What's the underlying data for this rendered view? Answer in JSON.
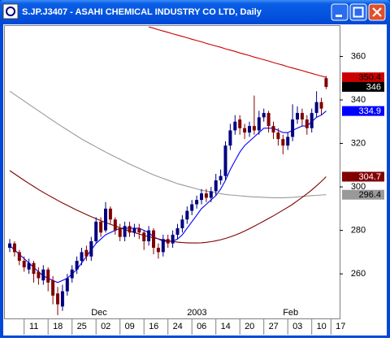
{
  "chart_data": {
    "type": "candlestick",
    "title": "S.JP.J3407 - ASAHI CHEMICAL INDUSTRY CO LTD, Daily",
    "categories": [
      null,
      null,
      null,
      "11",
      null,
      null,
      null,
      null,
      "18",
      null,
      null,
      null,
      null,
      "25",
      null,
      null,
      null,
      null,
      "02",
      null,
      null,
      null,
      null,
      "09",
      null,
      null,
      null,
      null,
      "16",
      null,
      null,
      null,
      null,
      "24",
      null,
      null,
      null,
      null,
      "06",
      null,
      null,
      null,
      null,
      "14",
      null,
      null,
      null,
      null,
      "20",
      null,
      null,
      null,
      null,
      "27",
      null,
      null,
      null,
      null,
      "03",
      null,
      null,
      null,
      null,
      "10",
      null,
      null,
      null,
      "17"
    ],
    "months": [
      null,
      null,
      null,
      null,
      null,
      null,
      null,
      null,
      null,
      null,
      null,
      null,
      null,
      null,
      null,
      null,
      null,
      null,
      "Dec",
      null,
      null,
      null,
      null,
      null,
      null,
      null,
      null,
      null,
      null,
      null,
      null,
      null,
      null,
      null,
      null,
      null,
      null,
      null,
      "2003",
      null,
      null,
      null,
      null,
      null,
      null,
      null,
      null,
      null,
      null,
      null,
      null,
      null,
      null,
      null,
      null,
      null,
      null,
      null,
      "Feb",
      null,
      null,
      null,
      null,
      null,
      null,
      null,
      null,
      null
    ],
    "open": [
      272,
      274,
      270,
      266,
      262,
      265,
      261,
      257,
      262,
      257,
      251,
      245,
      252,
      258,
      262,
      266,
      271,
      268,
      275,
      284,
      280,
      290,
      285,
      281,
      277,
      282,
      279,
      281,
      279,
      275,
      280,
      272,
      270,
      276,
      274,
      278,
      281,
      285,
      289,
      292,
      294,
      297,
      295,
      298,
      303,
      305,
      319,
      326,
      331,
      327,
      325,
      328,
      326,
      332,
      334,
      328,
      325,
      322,
      319,
      323,
      331,
      334,
      331,
      327,
      334,
      339,
      350,
      null
    ],
    "high": [
      276,
      275,
      271,
      268,
      267,
      266,
      263,
      264,
      263,
      259,
      254,
      255,
      260,
      264,
      268,
      272,
      273,
      277,
      286,
      286,
      293,
      291,
      286,
      283,
      284,
      284,
      283,
      283,
      280,
      282,
      281,
      274,
      278,
      278,
      280,
      283,
      287,
      291,
      294,
      296,
      299,
      299,
      300,
      306,
      308,
      321,
      329,
      333,
      333,
      329,
      330,
      342,
      335,
      336,
      335,
      330,
      327,
      324,
      325,
      338,
      337,
      336,
      333,
      336,
      344,
      341,
      351,
      null
    ],
    "low": [
      270,
      268,
      264,
      261,
      260,
      256,
      255,
      255,
      252,
      246,
      241,
      243,
      250,
      256,
      260,
      264,
      266,
      266,
      274,
      277,
      279,
      283,
      278,
      275,
      275,
      277,
      277,
      276,
      271,
      273,
      269,
      267,
      268,
      272,
      272,
      276,
      279,
      283,
      287,
      290,
      292,
      293,
      293,
      296,
      301,
      303,
      317,
      324,
      324,
      322,
      323,
      324,
      324,
      330,
      325,
      322,
      319,
      315,
      317,
      321,
      329,
      328,
      324,
      325,
      332,
      333,
      345,
      null
    ],
    "close": [
      274,
      270,
      266,
      263,
      265,
      260,
      258,
      262,
      256,
      250,
      246,
      252,
      258,
      262,
      266,
      270,
      268,
      275,
      284,
      279,
      290,
      285,
      280,
      277,
      282,
      279,
      281,
      279,
      275,
      280,
      272,
      270,
      276,
      274,
      278,
      281,
      285,
      289,
      292,
      294,
      297,
      295,
      298,
      303,
      305,
      319,
      326,
      330,
      327,
      325,
      328,
      326,
      332,
      334,
      328,
      325,
      322,
      319,
      323,
      331,
      334,
      331,
      327,
      334,
      339,
      336,
      346,
      null
    ],
    "up_color": "#000080",
    "down_color": "#800000",
    "close_color": "#000000",
    "series": [
      {
        "color": "#0000ff",
        "label_text_color": "#ffffff",
        "values": [
          273,
          271,
          269,
          267,
          265,
          263,
          261,
          259,
          258,
          257,
          256,
          257,
          258,
          260,
          262,
          265,
          268,
          271,
          274,
          276,
          278,
          279,
          280,
          281,
          281,
          281,
          281,
          281,
          280,
          279,
          277,
          276,
          275,
          275,
          275,
          276,
          278,
          281,
          284,
          287,
          290,
          292,
          294,
          296,
          299,
          303,
          308,
          312,
          316,
          319,
          321,
          323,
          325,
          327,
          327,
          327,
          326,
          325,
          325,
          326,
          327,
          328,
          328,
          330,
          332,
          333,
          334.9,
          null
        ]
      },
      {
        "color": "#cc0000",
        "label_text_color": "#000000",
        "values": [
          null,
          null,
          null,
          null,
          null,
          null,
          null,
          null,
          null,
          null,
          null,
          null,
          null,
          null,
          null,
          null,
          null,
          null,
          null,
          null,
          null,
          null,
          null,
          null,
          null,
          null,
          null,
          null,
          null,
          373.6,
          373.0,
          372.3,
          371.7,
          371.1,
          370.4,
          369.8,
          369.2,
          368.6,
          367.9,
          367.3,
          366.7,
          366.0,
          365.4,
          364.8,
          364.2,
          363.5,
          362.9,
          362.3,
          361.6,
          361.0,
          360.4,
          359.7,
          359.1,
          358.5,
          357.9,
          357.2,
          356.6,
          356.0,
          355.3,
          354.7,
          354.1,
          353.5,
          352.8,
          352.2,
          351.6,
          351.0,
          350.4,
          null
        ]
      },
      {
        "color": "#999999",
        "label_text_color": "#000000",
        "values": [
          344,
          342.5,
          341,
          339.5,
          338,
          336.5,
          335,
          333.5,
          332,
          330.5,
          329,
          327.6,
          326.2,
          324.8,
          323.4,
          322,
          320.8,
          319.6,
          318.4,
          317.2,
          316,
          314.9,
          313.8,
          312.7,
          311.6,
          310.5,
          309.5,
          308.5,
          307.5,
          306.5,
          305.5,
          304.7,
          303.9,
          303.1,
          302.3,
          301.5,
          300.9,
          300.3,
          299.7,
          299.1,
          298.5,
          298.1,
          297.7,
          297.3,
          296.9,
          296.5,
          296.3,
          296.1,
          295.9,
          295.7,
          295.5,
          295.4,
          295.3,
          295.2,
          295.1,
          295.0,
          295.0,
          295.0,
          295.1,
          295.2,
          295.4,
          295.6,
          295.8,
          296.0,
          296.1,
          296.3,
          296.4,
          null
        ]
      },
      {
        "color": "#800000",
        "label_text_color": "#ffffff",
        "values": [
          307.5,
          306,
          304.5,
          303,
          301.6,
          300.2,
          298.8,
          297.5,
          296.2,
          295,
          293.8,
          292.6,
          291.5,
          290.4,
          289.3,
          288.3,
          287.3,
          286.3,
          285.4,
          284.5,
          283.6,
          282.8,
          282,
          281.2,
          280.4,
          279.7,
          279,
          278.3,
          277.7,
          277.1,
          276.6,
          276.1,
          275.6,
          275.2,
          274.9,
          274.6,
          274.4,
          274.3,
          274.2,
          274.2,
          274.3,
          274.5,
          274.8,
          275.2,
          275.7,
          276.3,
          277,
          277.8,
          278.7,
          279.7,
          280.8,
          281.9,
          283.1,
          284.3,
          285.5,
          286.7,
          288,
          289.3,
          290.6,
          292,
          293.6,
          295.2,
          296.8,
          298.6,
          300.5,
          302.5,
          304.7,
          null
        ]
      }
    ],
    "ylim": [
      239.5,
      374
    ],
    "yticks": [
      260,
      280,
      300,
      320,
      340,
      360
    ]
  }
}
